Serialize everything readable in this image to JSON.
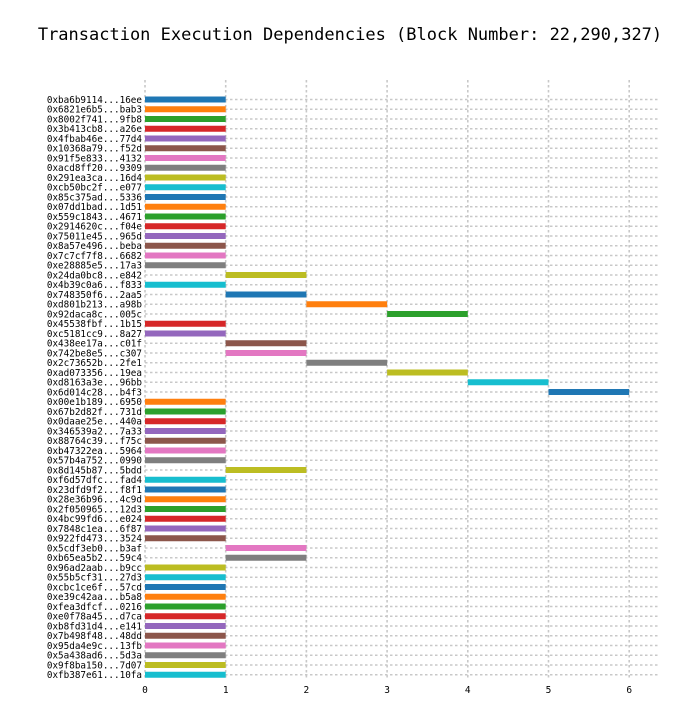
{
  "chart_data": {
    "type": "bar",
    "orientation": "horizontal",
    "title": "Transaction Execution Dependencies (Block Number: 22,290,327)",
    "xlabel": "",
    "ylabel": "",
    "xlim": [
      0,
      6.35
    ],
    "xticks": [
      0,
      1,
      2,
      3,
      4,
      5,
      6
    ],
    "grid": true,
    "colors": [
      "#1f77b4",
      "#ff7f0e",
      "#2ca02c",
      "#d62728",
      "#9467bd",
      "#8c564b",
      "#e377c2",
      "#7f7f7f",
      "#bcbd22",
      "#17becf"
    ],
    "bars": [
      {
        "label": "0xba6b9114...16ee",
        "start": 0,
        "end": 1
      },
      {
        "label": "0x6821e6b5...bab3",
        "start": 0,
        "end": 1
      },
      {
        "label": "0x8002f741...9fb8",
        "start": 0,
        "end": 1
      },
      {
        "label": "0x3b413cb8...a26e",
        "start": 0,
        "end": 1
      },
      {
        "label": "0x4fbab46e...77d4",
        "start": 0,
        "end": 1
      },
      {
        "label": "0x10368a79...f52d",
        "start": 0,
        "end": 1
      },
      {
        "label": "0x91f5e833...4132",
        "start": 0,
        "end": 1
      },
      {
        "label": "0xacd8ff20...9309",
        "start": 0,
        "end": 1
      },
      {
        "label": "0x291ea3ca...16d4",
        "start": 0,
        "end": 1
      },
      {
        "label": "0xcb50bc2f...e077",
        "start": 0,
        "end": 1
      },
      {
        "label": "0x85c375ad...5336",
        "start": 0,
        "end": 1
      },
      {
        "label": "0x07dd1bad...1d51",
        "start": 0,
        "end": 1
      },
      {
        "label": "0x559c1843...4671",
        "start": 0,
        "end": 1
      },
      {
        "label": "0x2914620c...f04e",
        "start": 0,
        "end": 1
      },
      {
        "label": "0x75011e45...965d",
        "start": 0,
        "end": 1
      },
      {
        "label": "0x8a57e496...beba",
        "start": 0,
        "end": 1
      },
      {
        "label": "0x7c7cf7f8...6682",
        "start": 0,
        "end": 1
      },
      {
        "label": "0xe28885e5...17a3",
        "start": 0,
        "end": 1
      },
      {
        "label": "0x24da0bc8...e842",
        "start": 1,
        "end": 2
      },
      {
        "label": "0x4b39c0a6...f833",
        "start": 0,
        "end": 1
      },
      {
        "label": "0x748350f6...2aa5",
        "start": 1,
        "end": 2
      },
      {
        "label": "0xd801b213...a98b",
        "start": 2,
        "end": 3
      },
      {
        "label": "0x92daca8c...005c",
        "start": 3,
        "end": 4
      },
      {
        "label": "0x45538fbf...1b15",
        "start": 0,
        "end": 1
      },
      {
        "label": "0xc5181cc9...8a27",
        "start": 0,
        "end": 1
      },
      {
        "label": "0x438ee17a...c01f",
        "start": 1,
        "end": 2
      },
      {
        "label": "0x742be8e5...c307",
        "start": 1,
        "end": 2
      },
      {
        "label": "0x2c73652b...2fe1",
        "start": 2,
        "end": 3
      },
      {
        "label": "0xad073356...19ea",
        "start": 3,
        "end": 4
      },
      {
        "label": "0xd8163a3e...96bb",
        "start": 4,
        "end": 5
      },
      {
        "label": "0x6d014c28...b4f3",
        "start": 5,
        "end": 6
      },
      {
        "label": "0x00e1b189...6950",
        "start": 0,
        "end": 1
      },
      {
        "label": "0x67b2d82f...731d",
        "start": 0,
        "end": 1
      },
      {
        "label": "0x0daae25e...440a",
        "start": 0,
        "end": 1
      },
      {
        "label": "0x346539a2...7a33",
        "start": 0,
        "end": 1
      },
      {
        "label": "0x88764c39...f75c",
        "start": 0,
        "end": 1
      },
      {
        "label": "0xb47322ea...5964",
        "start": 0,
        "end": 1
      },
      {
        "label": "0x57b4a752...0990",
        "start": 0,
        "end": 1
      },
      {
        "label": "0x8d145b87...5bdd",
        "start": 1,
        "end": 2
      },
      {
        "label": "0xf6d57dfc...fad4",
        "start": 0,
        "end": 1
      },
      {
        "label": "0x23dfd9f2...f8f1",
        "start": 0,
        "end": 1
      },
      {
        "label": "0x28e36b96...4c9d",
        "start": 0,
        "end": 1
      },
      {
        "label": "0x2f050965...12d3",
        "start": 0,
        "end": 1
      },
      {
        "label": "0x4bc99fd6...e024",
        "start": 0,
        "end": 1
      },
      {
        "label": "0x7848c1ea...6f87",
        "start": 0,
        "end": 1
      },
      {
        "label": "0x922fd473...3524",
        "start": 0,
        "end": 1
      },
      {
        "label": "0x5cdf3eb0...b3af",
        "start": 1,
        "end": 2
      },
      {
        "label": "0xb65ea5b2...59c4",
        "start": 1,
        "end": 2
      },
      {
        "label": "0x96ad2aab...b9cc",
        "start": 0,
        "end": 1
      },
      {
        "label": "0x55b5cf31...27d3",
        "start": 0,
        "end": 1
      },
      {
        "label": "0xcbc1ce6f...57cd",
        "start": 0,
        "end": 1
      },
      {
        "label": "0xe39c42aa...b5a8",
        "start": 0,
        "end": 1
      },
      {
        "label": "0xfea3dfcf...0216",
        "start": 0,
        "end": 1
      },
      {
        "label": "0xe0f78a45...d7ca",
        "start": 0,
        "end": 1
      },
      {
        "label": "0xb8fd31d4...e141",
        "start": 0,
        "end": 1
      },
      {
        "label": "0x7b498f48...48dd",
        "start": 0,
        "end": 1
      },
      {
        "label": "0x95da4e9c...13fb",
        "start": 0,
        "end": 1
      },
      {
        "label": "0x5a438ad6...5d3a",
        "start": 0,
        "end": 1
      },
      {
        "label": "0x9f8ba150...7d07",
        "start": 0,
        "end": 1
      },
      {
        "label": "0xfb387e61...10fa",
        "start": 0,
        "end": 1
      }
    ]
  }
}
